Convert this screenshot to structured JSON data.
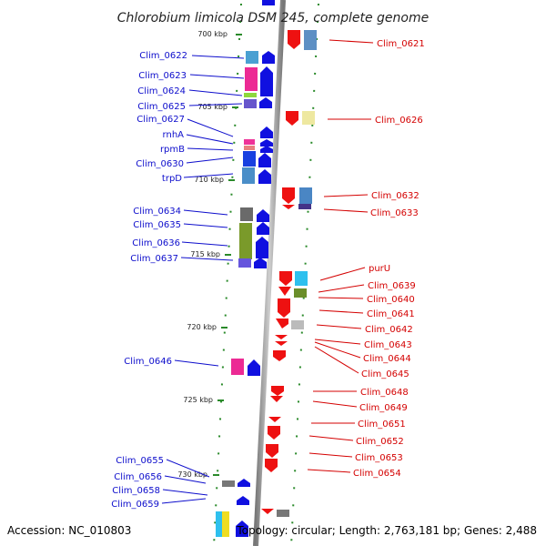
{
  "title": "Chlorobium limicola DSM 245, complete genome",
  "footer": {
    "accession": "Accession: NC_010803",
    "topology": "Topology: circular; Length: 2,763,181 bp; Genes: 2,488"
  },
  "ticks": [
    "700 kbp",
    "705 kbp",
    "710 kbp",
    "715 kbp",
    "720 kbp",
    "725 kbp",
    "730 kbp"
  ],
  "left_labels": [
    "Clim_0622",
    "Clim_0623",
    "Clim_0624",
    "Clim_0625",
    "Clim_0627",
    "rnhA",
    "rpmB",
    "Clim_0630",
    "trpD",
    "Clim_0634",
    "Clim_0635",
    "Clim_0636",
    "Clim_0637",
    "Clim_0646",
    "Clim_0655",
    "Clim_0656",
    "Clim_0658",
    "Clim_0659"
  ],
  "right_labels": [
    "Clim_0621",
    "Clim_0626",
    "Clim_0632",
    "Clim_0633",
    "purU",
    "Clim_0639",
    "Clim_0640",
    "Clim_0641",
    "Clim_0642",
    "Clim_0643",
    "Clim_0644",
    "Clim_0645",
    "Clim_0648",
    "Clim_0649",
    "Clim_0651",
    "Clim_0652",
    "Clim_0653",
    "Clim_0654"
  ],
  "colors": {
    "forward_strand": "#1010e0",
    "reverse_strand": "#ee1111",
    "backbone": "#999999",
    "label_left": "#0d0dcc",
    "label_right": "#d40000",
    "tick_mark": "#2a8a2a"
  }
}
